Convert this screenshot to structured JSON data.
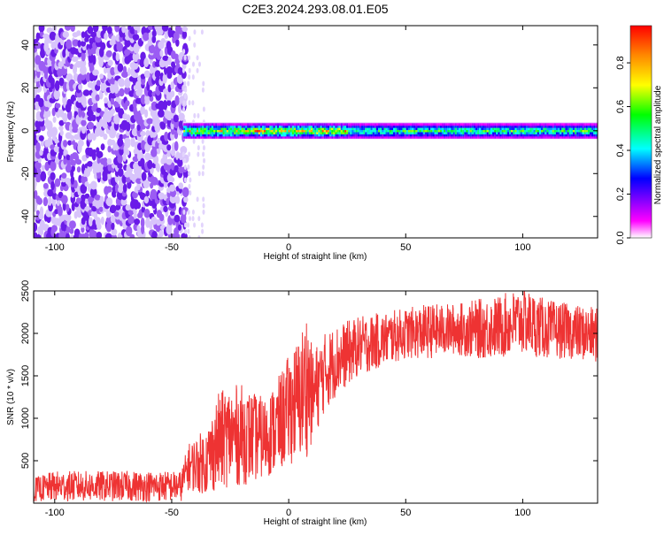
{
  "title": "C2E3.2024.293.08.01.E05",
  "chart_data": [
    {
      "type": "heatmap",
      "xlabel": "Height of straight line (km)",
      "ylabel": "Frequency (Hz)",
      "xlim": [
        -109,
        132
      ],
      "ylim": [
        -50,
        49
      ],
      "x_ticks": [
        -100,
        -50,
        0,
        50,
        100
      ],
      "y_ticks": [
        -40,
        -20,
        0,
        20,
        40
      ],
      "colorbar": {
        "label": "Normalized spectral amplitude",
        "range": [
          0,
          0.97
        ],
        "ticks": [
          "0.0",
          "0.2",
          "0.4",
          "0.6",
          "0.8"
        ],
        "colors": [
          "#ffffff",
          "#ff00ff",
          "#0000ff",
          "#00ffff",
          "#00ff00",
          "#ffff00",
          "#ff8800",
          "#ff0000"
        ]
      },
      "regions": [
        {
          "x_range": [
            -109,
            -45
          ],
          "frequency_range": [
            -50,
            49
          ],
          "amplitude": [
            0.02,
            0.12
          ],
          "description_color": "#7b2cf5"
        },
        {
          "x_range": [
            -45,
            -35
          ],
          "frequency_range": [
            -50,
            49
          ],
          "amplitude": [
            0.0,
            0.05
          ],
          "description_color": "#d8c4fb"
        },
        {
          "x_range": [
            -45,
            132
          ],
          "frequency_range": [
            -3,
            3
          ],
          "amplitude": [
            0.2,
            0.97
          ],
          "description_color": "#22dd66"
        }
      ]
    },
    {
      "type": "line",
      "xlabel": "Height of straight line (km)",
      "ylabel": "SNR (10 * v/v)",
      "xlim": [
        -109,
        132
      ],
      "ylim": [
        0,
        2500
      ],
      "x_ticks": [
        -100,
        -50,
        0,
        50,
        100
      ],
      "y_ticks": [
        500,
        1000,
        1500,
        2000,
        2500
      ],
      "series": [
        {
          "color": "#ee3333",
          "x": [
            -109,
            -100,
            -80,
            -60,
            -46,
            -43,
            -35,
            -30,
            -25,
            -20,
            -15,
            -10,
            -5,
            0,
            5,
            8,
            10,
            15,
            20,
            30,
            40,
            50,
            60,
            70,
            80,
            90,
            100,
            110,
            120,
            132
          ],
          "y_low": [
            20,
            20,
            20,
            20,
            20,
            150,
            100,
            150,
            200,
            200,
            250,
            300,
            350,
            450,
            500,
            550,
            700,
            1050,
            1250,
            1500,
            1600,
            1700,
            1700,
            1750,
            1700,
            1700,
            1750,
            1700,
            1700,
            1650
          ],
          "y_high": [
            300,
            380,
            380,
            380,
            380,
            700,
            900,
            1300,
            1400,
            1400,
            1300,
            1250,
            1450,
            1750,
            2000,
            2350,
            1800,
            2000,
            2100,
            2200,
            2250,
            2300,
            2350,
            2350,
            2400,
            2450,
            2550,
            2400,
            2350,
            2300
          ]
        }
      ]
    }
  ]
}
